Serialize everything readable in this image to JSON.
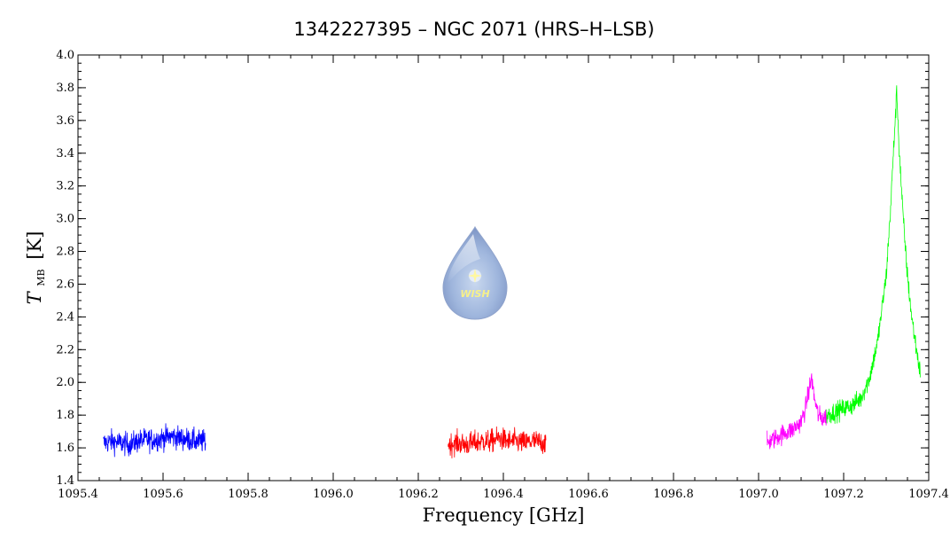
{
  "chart_data": {
    "type": "line",
    "title": "1342227395 – NGC 2071 (HRS–H–LSB)",
    "xlabel": "Frequency [GHz]",
    "ylabel_main": "T",
    "ylabel_sub": "MB",
    "ylabel_unit": "[K]",
    "xlim": [
      1095.4,
      1097.4
    ],
    "ylim": [
      1.4,
      4.0
    ],
    "xticks": [
      1095.4,
      1095.6,
      1095.8,
      1096.0,
      1096.2,
      1096.4,
      1096.6,
      1096.8,
      1097.0,
      1097.2,
      1097.4
    ],
    "xtick_labels": [
      "1095.4",
      "1095.6",
      "1095.8",
      "1096.0",
      "1096.2",
      "1096.4",
      "1096.6",
      "1096.8",
      "1097.0",
      "1097.2",
      "1097.4"
    ],
    "yticks": [
      1.4,
      1.6,
      1.8,
      2.0,
      2.2,
      2.4,
      2.6,
      2.8,
      3.0,
      3.2,
      3.4,
      3.6,
      3.8,
      4.0
    ],
    "ytick_labels": [
      "1.4",
      "1.6",
      "1.8",
      "2.0",
      "2.2",
      "2.4",
      "2.6",
      "2.8",
      "3.0",
      "3.2",
      "3.4",
      "3.6",
      "3.8",
      "4.0"
    ],
    "grid": false,
    "series": [
      {
        "color": "#0000ff",
        "x": [
          1095.46,
          1095.48,
          1095.5,
          1095.52,
          1095.54,
          1095.56,
          1095.58,
          1095.6,
          1095.62,
          1095.64,
          1095.66,
          1095.68,
          1095.7
        ],
        "y": [
          1.63,
          1.64,
          1.63,
          1.62,
          1.64,
          1.65,
          1.65,
          1.66,
          1.67,
          1.66,
          1.65,
          1.64,
          1.64
        ],
        "noise": 0.035
      },
      {
        "color": "#ff0000",
        "x": [
          1096.27,
          1096.29,
          1096.31,
          1096.33,
          1096.35,
          1096.37,
          1096.39,
          1096.41,
          1096.43,
          1096.45,
          1096.47,
          1096.5
        ],
        "y": [
          1.62,
          1.63,
          1.62,
          1.63,
          1.64,
          1.64,
          1.66,
          1.64,
          1.64,
          1.63,
          1.64,
          1.63
        ],
        "noise": 0.035
      },
      {
        "color": "#ff00ff",
        "x": [
          1097.02,
          1097.04,
          1097.06,
          1097.08,
          1097.1,
          1097.11,
          1097.12,
          1097.125,
          1097.13,
          1097.14,
          1097.15,
          1097.16
        ],
        "y": [
          1.63,
          1.66,
          1.69,
          1.71,
          1.76,
          1.84,
          1.97,
          2.03,
          1.92,
          1.8,
          1.78,
          1.79
        ],
        "noise": 0.03
      },
      {
        "color": "#00ff00",
        "x": [
          1097.16,
          1097.18,
          1097.2,
          1097.22,
          1097.24,
          1097.26,
          1097.28,
          1097.3,
          1097.31,
          1097.32,
          1097.325,
          1097.33,
          1097.34,
          1097.35,
          1097.36,
          1097.37,
          1097.38
        ],
        "y": [
          1.8,
          1.82,
          1.84,
          1.86,
          1.9,
          2.02,
          2.25,
          2.65,
          3.05,
          3.55,
          3.78,
          3.45,
          3.0,
          2.65,
          2.4,
          2.22,
          2.06
        ],
        "noise": 0.03
      }
    ]
  },
  "logo": {
    "text": "WISH"
  }
}
